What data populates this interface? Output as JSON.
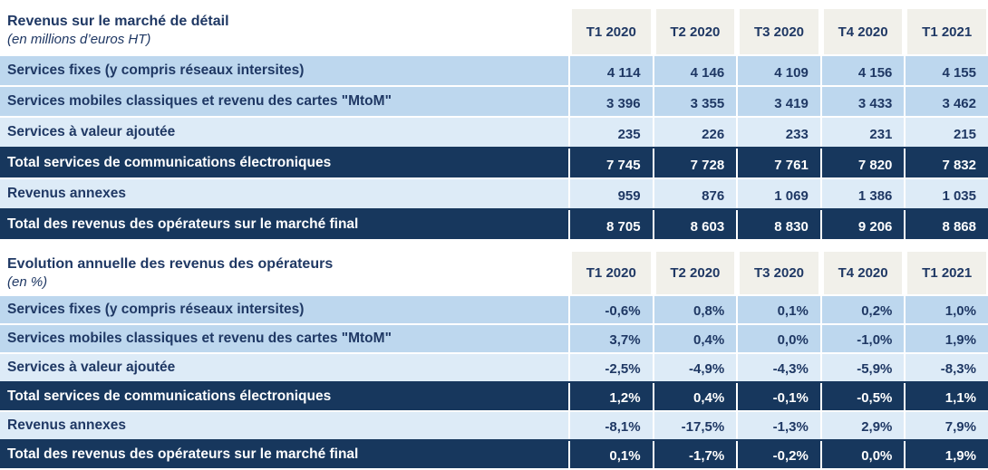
{
  "columns": [
    "T1 2020",
    "T2 2020",
    "T3 2020",
    "T4 2020",
    "T1 2021"
  ],
  "colors": {
    "navy_fill": "#17375D",
    "text_navy": "#1F3864",
    "row_blue": "#BDD7EE",
    "row_light_blue": "#DDEBF7",
    "header_beige": "#F1F0EA"
  },
  "table1": {
    "title": "Revenus sur le marché de détail",
    "subtitle": "(en millions d’euros HT)",
    "rows": [
      {
        "label": "Services fixes (y compris réseaux intersites)",
        "values": [
          "4 114",
          "4 146",
          "4 109",
          "4 156",
          "4 155"
        ]
      },
      {
        "label": "Services mobiles classiques et revenu des cartes \"MtoM\"",
        "values": [
          "3 396",
          "3 355",
          "3 419",
          "3 433",
          "3 462"
        ]
      },
      {
        "label": "Services à valeur ajoutée",
        "values": [
          "235",
          "226",
          "233",
          "231",
          "215"
        ]
      },
      {
        "label": "Total services de communications électroniques",
        "values": [
          "7 745",
          "7 728",
          "7 761",
          "7 820",
          "7 832"
        ]
      },
      {
        "label": "Revenus annexes",
        "values": [
          "959",
          "876",
          "1 069",
          "1 386",
          "1 035"
        ]
      },
      {
        "label": "Total des revenus des opérateurs sur le marché final",
        "values": [
          "8 705",
          "8 603",
          "8 830",
          "9 206",
          "8 868"
        ]
      }
    ]
  },
  "table2": {
    "title": "Evolution annuelle des revenus des opérateurs",
    "subtitle": "(en %)",
    "rows": [
      {
        "label": "Services fixes (y compris réseaux intersites)",
        "values": [
          "-0,6%",
          "0,8%",
          "0,1%",
          "0,2%",
          "1,0%"
        ]
      },
      {
        "label": "Services mobiles classiques et revenu des cartes \"MtoM\"",
        "values": [
          "3,7%",
          "0,4%",
          "0,0%",
          "-1,0%",
          "1,9%"
        ]
      },
      {
        "label": "Services à valeur ajoutée",
        "values": [
          "-2,5%",
          "-4,9%",
          "-4,3%",
          "-5,9%",
          "-8,3%"
        ]
      },
      {
        "label": "Total services de communications électroniques",
        "values": [
          "1,2%",
          "0,4%",
          "-0,1%",
          "-0,5%",
          "1,1%"
        ]
      },
      {
        "label": "Revenus annexes",
        "values": [
          "-8,1%",
          "-17,5%",
          "-1,3%",
          "2,9%",
          "7,9%"
        ]
      },
      {
        "label": "Total des revenus des opérateurs sur le marché final",
        "values": [
          "0,1%",
          "-1,7%",
          "-0,2%",
          "0,0%",
          "1,9%"
        ]
      }
    ]
  }
}
